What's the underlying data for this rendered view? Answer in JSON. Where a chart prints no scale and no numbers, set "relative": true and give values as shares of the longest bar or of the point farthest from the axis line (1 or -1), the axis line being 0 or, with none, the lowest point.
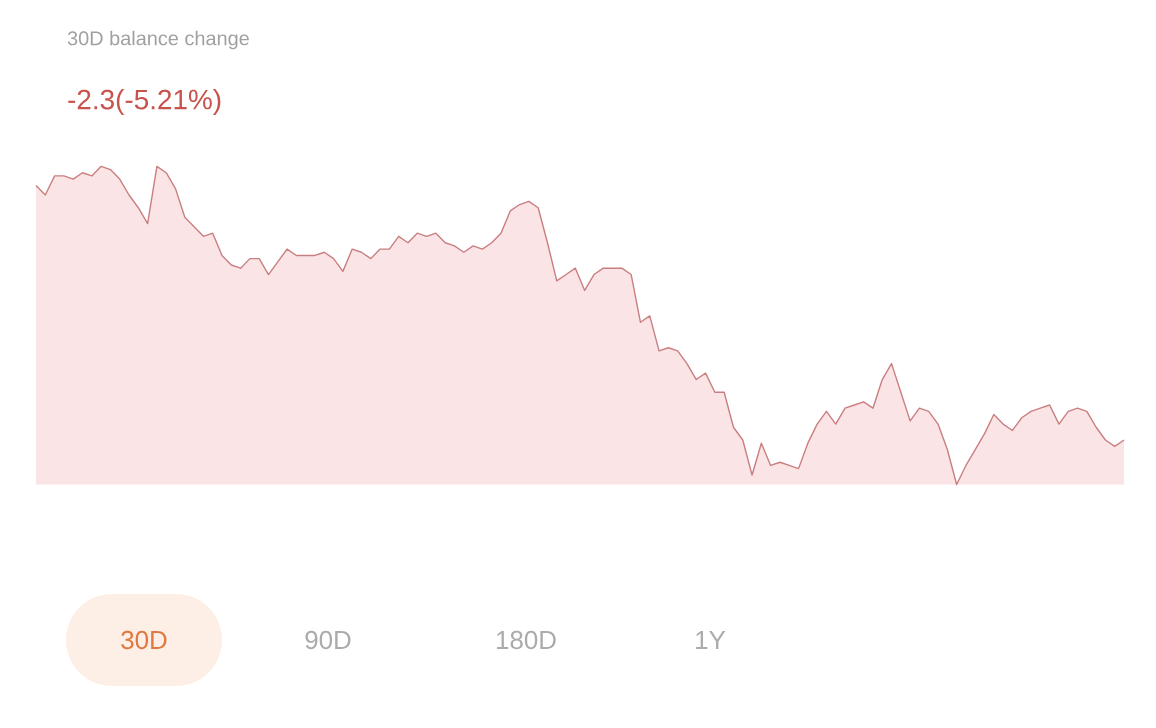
{
  "chart_data": {
    "type": "area",
    "title": "30D balance change",
    "subtitle": "-2.3(-5.21%)",
    "relative": true,
    "color": "#c97f80",
    "annotations": [
      "30D",
      "90D",
      "180D",
      "1Y"
    ],
    "categories": [
      null,
      null,
      null,
      null,
      null,
      null,
      null,
      null,
      null,
      null,
      null,
      null,
      null,
      null,
      null,
      null,
      null,
      null,
      null,
      null,
      null,
      null,
      null,
      null,
      null,
      null,
      null,
      null,
      null,
      null,
      null,
      null,
      null,
      null,
      null,
      null,
      null,
      null,
      null,
      null,
      null,
      null,
      null,
      null,
      null,
      null,
      null,
      null,
      null,
      null,
      null,
      null,
      null,
      null,
      null,
      null,
      null,
      null,
      null,
      null,
      null,
      null,
      null,
      null,
      null,
      null,
      null,
      null,
      null,
      null,
      null,
      null,
      null,
      null,
      null,
      null,
      null,
      null,
      null,
      null,
      null,
      null,
      null,
      null,
      null,
      null,
      null,
      null,
      null,
      null,
      null,
      null,
      null,
      null,
      null,
      null,
      null,
      null,
      null,
      null,
      null,
      null,
      null,
      null,
      null,
      null,
      null,
      null,
      null,
      null,
      null,
      null,
      null,
      null,
      null,
      null,
      null,
      null
    ],
    "values": [
      0.94,
      0.91,
      0.97,
      0.97,
      0.96,
      0.98,
      0.97,
      1,
      0.99,
      0.96,
      0.91,
      0.87,
      0.82,
      1,
      0.98,
      0.93,
      0.84,
      0.81,
      0.78,
      0.79,
      0.72,
      0.69,
      0.68,
      0.71,
      0.71,
      0.66,
      0.7,
      0.74,
      0.72,
      0.72,
      0.72,
      0.73,
      0.71,
      0.67,
      0.74,
      0.73,
      0.71,
      0.74,
      0.74,
      0.78,
      0.76,
      0.79,
      0.78,
      0.79,
      0.76,
      0.75,
      0.73,
      0.75,
      0.74,
      0.76,
      0.79,
      0.86,
      0.88,
      0.89,
      0.87,
      0.76,
      0.64,
      0.66,
      0.68,
      0.61,
      0.66,
      0.68,
      0.68,
      0.68,
      0.66,
      0.51,
      0.53,
      0.42,
      0.43,
      0.42,
      0.38,
      0.33,
      0.35,
      0.29,
      0.29,
      0.18,
      0.14,
      0.03,
      0.13,
      0.06,
      0.07,
      0.06,
      0.05,
      0.13,
      0.19,
      0.23,
      0.19,
      0.24,
      0.25,
      0.26,
      0.24,
      0.33,
      0.38,
      0.29,
      0.2,
      0.24,
      0.23,
      0.19,
      0.11,
      0,
      0.06,
      0.11,
      0.16,
      0.22,
      0.19,
      0.17,
      0.21,
      0.23,
      0.24,
      0.25,
      0.19,
      0.23,
      0.24,
      0.23,
      0.18,
      0.14,
      0.12,
      0.14
    ]
  }
}
